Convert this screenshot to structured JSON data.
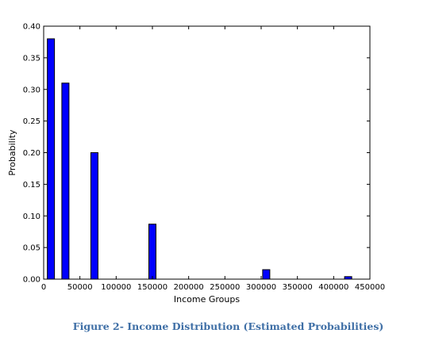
{
  "chart_data": {
    "type": "bar",
    "x": [
      10000,
      30000,
      70000,
      150000,
      307000,
      420000
    ],
    "values": [
      0.38,
      0.31,
      0.2,
      0.087,
      0.015,
      0.004
    ],
    "xlabel": "Income Groups",
    "ylabel": "Probability",
    "xlim": [
      0,
      450000
    ],
    "ylim": [
      0,
      0.4
    ],
    "xticks": [
      0,
      50000,
      100000,
      150000,
      200000,
      250000,
      300000,
      350000,
      400000,
      450000
    ],
    "xtick_labels": [
      "0",
      "50000",
      "100000",
      "150000",
      "200000",
      "250000",
      "300000",
      "350000",
      "400000",
      "450000"
    ],
    "yticks": [
      0,
      0.05,
      0.1,
      0.15,
      0.2,
      0.25,
      0.3,
      0.35,
      0.4
    ],
    "ytick_labels": [
      "0.00",
      "0.05",
      "0.10",
      "0.15",
      "0.20",
      "0.25",
      "0.30",
      "0.35",
      "0.40"
    ],
    "bar_color": "#0000ff",
    "edge_color": "#000000",
    "grid": false
  },
  "caption": "Figure 2- Income Distribution (Estimated Probabilities)"
}
